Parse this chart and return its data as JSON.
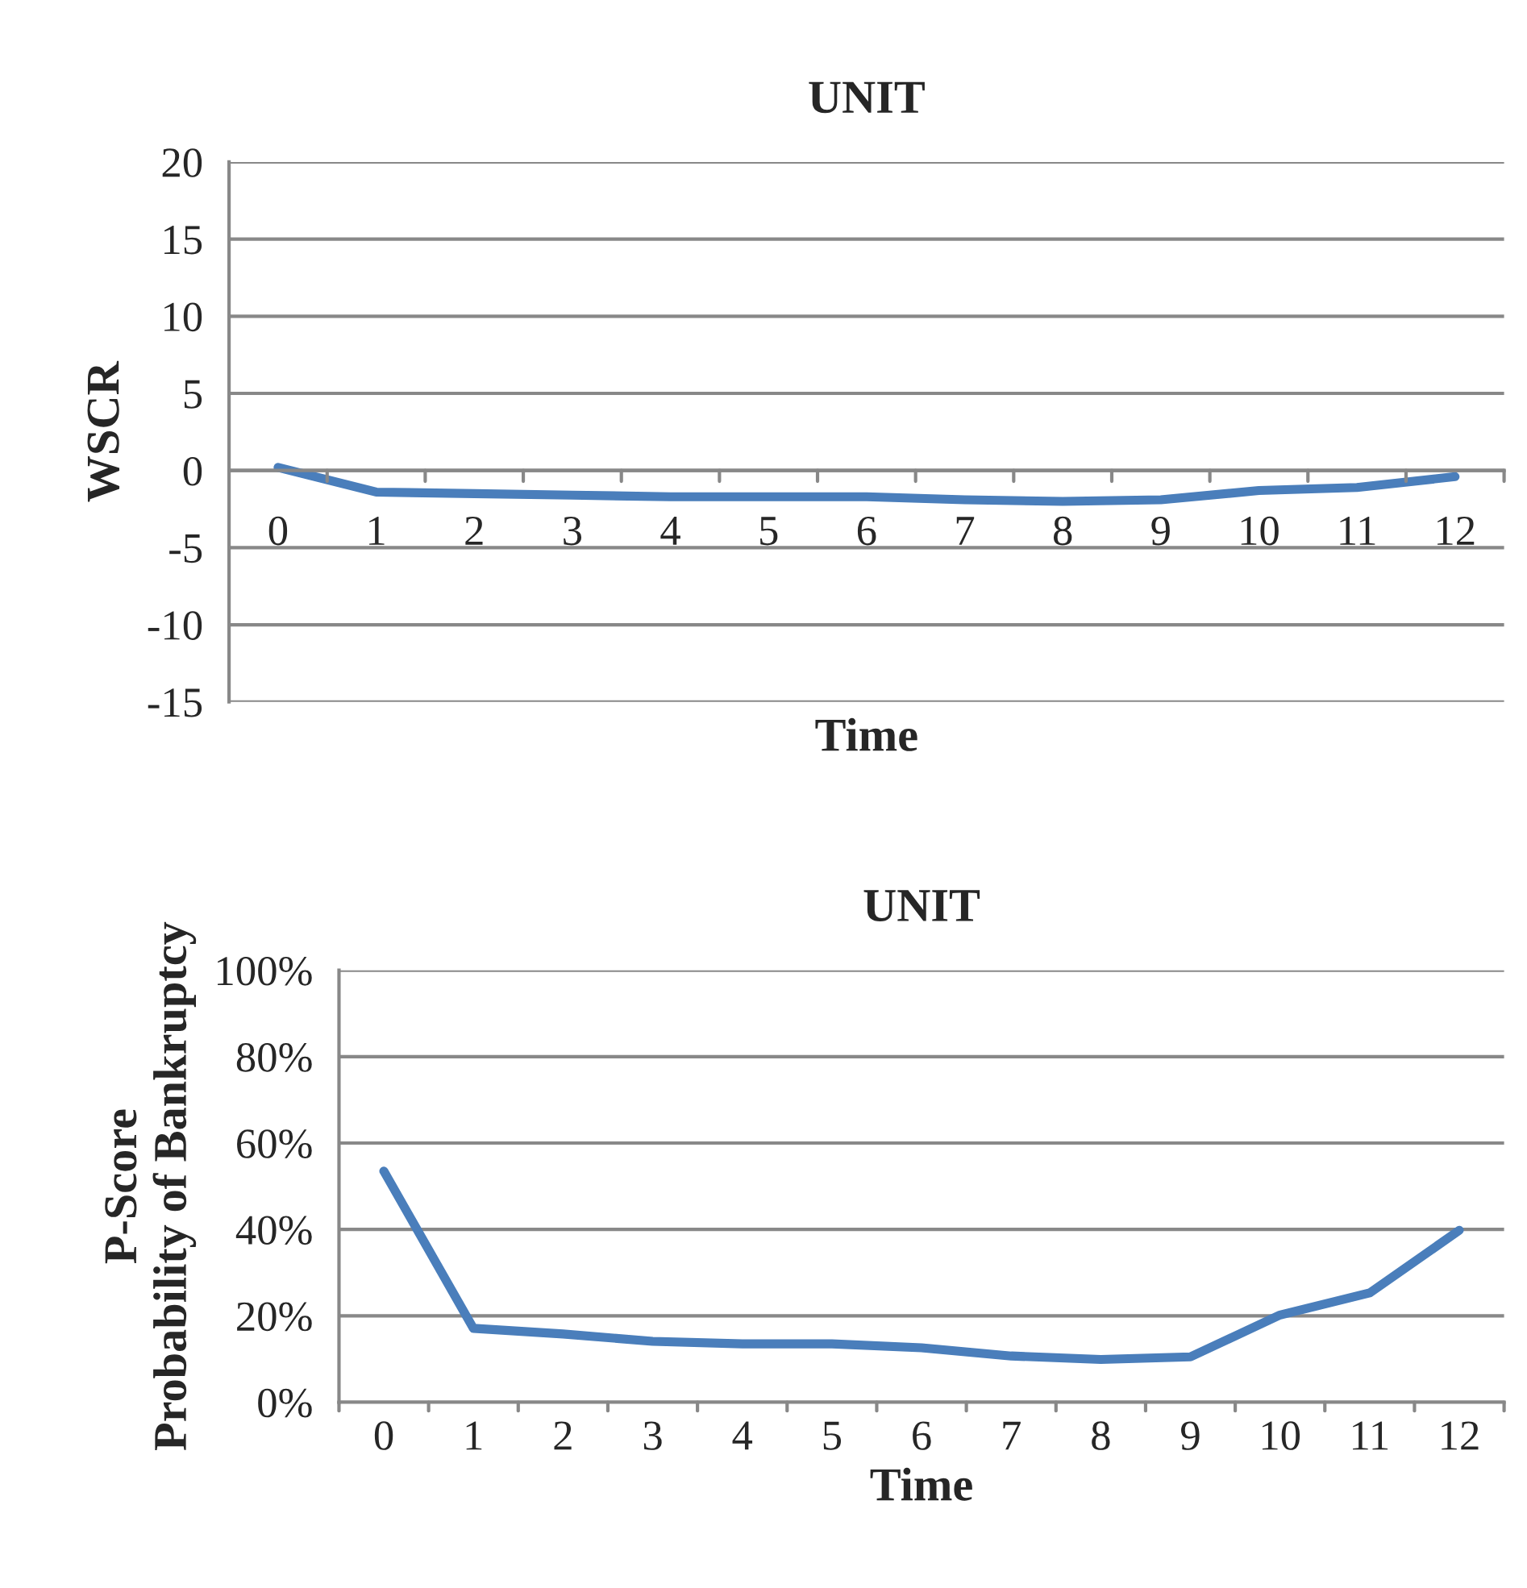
{
  "chart_data": [
    {
      "type": "line",
      "title": "UNIT",
      "xlabel": "Time",
      "ylabel": "WSCR",
      "categories": [
        "0",
        "1",
        "2",
        "3",
        "4",
        "5",
        "6",
        "7",
        "8",
        "9",
        "10",
        "11",
        "12"
      ],
      "series": [
        {
          "color": "#4a7ebb",
          "values": [
            0.2,
            -1.4,
            -1.5,
            -1.6,
            -1.7,
            -1.7,
            -1.7,
            -1.9,
            -2.0,
            -1.9,
            -1.3,
            -1.1,
            -0.4
          ]
        }
      ],
      "ylim": [
        -15,
        20
      ],
      "yticks": [
        -15,
        -10,
        -5,
        0,
        5,
        10,
        15,
        20
      ],
      "grid": "y",
      "marker": "none",
      "line_style": "solid"
    },
    {
      "type": "line",
      "title": "UNIT",
      "xlabel": "Time",
      "ylabel": "P-Score\nProbability of Bankruptcy",
      "categories": [
        "0",
        "1",
        "2",
        "3",
        "4",
        "5",
        "6",
        "7",
        "8",
        "9",
        "10",
        "11",
        "12"
      ],
      "series": [
        {
          "color": "#4a7ebb",
          "values": [
            53.5,
            17.1,
            15.8,
            14.1,
            13.5,
            13.5,
            12.6,
            10.7,
            9.9,
            10.5,
            20.2,
            25.3,
            39.8
          ]
        }
      ],
      "ylim": [
        0,
        100
      ],
      "yticks": [
        {
          "value": 0,
          "label": "0%"
        },
        {
          "value": 20,
          "label": "20%"
        },
        {
          "value": 40,
          "label": "40%"
        },
        {
          "value": 60,
          "label": "60%"
        },
        {
          "value": 80,
          "label": "80%"
        },
        {
          "value": 100,
          "label": "100%"
        }
      ],
      "grid": "y",
      "marker": "none",
      "line_style": "solid"
    }
  ]
}
